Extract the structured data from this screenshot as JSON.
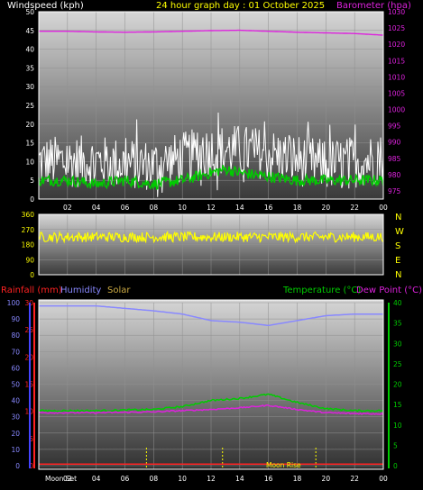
{
  "header": {
    "windspeed_label": "Windspeed (kph)",
    "title": "24 hour graph day : 01 October 2025",
    "barometer_label": "Barometer (hpa)"
  },
  "footer_labels": {
    "rainfall": "Rainfall (mm)",
    "humidity": "Humidity",
    "solar": "Solar",
    "temperature": "Temperature (°C)",
    "dewpoint": "Dew Point (°C)",
    "moonset": "Moon Set",
    "moonrise": "Moon Rise"
  },
  "compass": [
    "N",
    "W",
    "S",
    "E",
    "N"
  ],
  "colors": {
    "windspeed": "#ffffff",
    "gust_avg": "#00cc00",
    "barometer": "#dd22dd",
    "direction": "#ffff00",
    "rainfall": "#ff2222",
    "humidity": "#8888ff",
    "solar": "#ccaa44",
    "temperature": "#00cc00",
    "dewpoint": "#dd22dd"
  },
  "chart_data": [
    {
      "type": "line",
      "name": "wind-barometer",
      "x_ticks": [
        "02",
        "04",
        "06",
        "08",
        "10",
        "12",
        "14",
        "16",
        "18",
        "20",
        "22",
        "00"
      ],
      "y_left_ticks": [
        "50",
        "45",
        "40",
        "35",
        "30",
        "25",
        "20",
        "15",
        "10",
        "5",
        "0"
      ],
      "y_left_range": [
        0,
        50
      ],
      "y_right_ticks": [
        "1030",
        "1025",
        "1020",
        "1015",
        "1010",
        "1005",
        "1000",
        "995",
        "990",
        "985",
        "980",
        "975"
      ],
      "y_right_range": [
        972.5,
        1030
      ],
      "series": [
        {
          "key": "windspeed",
          "profile_x": [
            0,
            4,
            8,
            12,
            14,
            16,
            20,
            24
          ],
          "profile_y": [
            10,
            10,
            9,
            13,
            13,
            12,
            9,
            11
          ],
          "spread": 7
        },
        {
          "key": "gust_avg",
          "profile_x": [
            0,
            2,
            4,
            6,
            8,
            10,
            12,
            13,
            14,
            16,
            18,
            20,
            22,
            24
          ],
          "profile_y": [
            5,
            5,
            4,
            5,
            4,
            5,
            7,
            8,
            7,
            6,
            5,
            5,
            5,
            5
          ],
          "spread": 1.5
        },
        {
          "key": "barometer",
          "profile_x": [
            0,
            2,
            4,
            6,
            8,
            10,
            12,
            14,
            16,
            18,
            20,
            22,
            24
          ],
          "profile_y": [
            1024,
            1024,
            1023.8,
            1023.7,
            1023.8,
            1024,
            1024.2,
            1024.3,
            1024,
            1023.7,
            1023.5,
            1023.3,
            1022.8
          ],
          "spread": 0
        }
      ]
    },
    {
      "type": "line",
      "name": "wind-direction",
      "y_ticks": [
        "360",
        "270",
        "180",
        "90",
        "0"
      ],
      "y_range": [
        0,
        360
      ],
      "series": [
        {
          "key": "direction",
          "profile_x": [
            0,
            24
          ],
          "profile_y": [
            225,
            225
          ],
          "spread": 30
        }
      ]
    },
    {
      "type": "line",
      "name": "temp-humidity",
      "x_ticks": [
        "02",
        "04",
        "06",
        "08",
        "10",
        "12",
        "14",
        "16",
        "18",
        "20",
        "22",
        "00"
      ],
      "y_left_ticks": [
        "100",
        "90",
        "80",
        "70",
        "60",
        "50",
        "40",
        "30",
        "20",
        "10",
        "0"
      ],
      "y_left_range": [
        0,
        100
      ],
      "y_rain_ticks": [
        "30",
        "25",
        "20",
        "15",
        "10",
        "5",
        "0"
      ],
      "y_rain_range": [
        0,
        30
      ],
      "y_right_ticks": [
        "40",
        "35",
        "30",
        "25",
        "20",
        "15",
        "10",
        "5",
        "0"
      ],
      "y_right_range": [
        0,
        40
      ],
      "moonset_hour": 7.5,
      "moonrise_hour": 19.3,
      "series": [
        {
          "key": "humidity",
          "axis": "left",
          "profile_x": [
            0,
            4,
            8,
            10,
            12,
            14,
            16,
            18,
            20,
            22,
            24
          ],
          "profile_y": [
            98,
            98,
            95,
            93,
            89,
            88,
            86,
            89,
            92,
            93,
            93
          ],
          "spread": 0
        },
        {
          "key": "temperature",
          "axis": "right",
          "profile_x": [
            0,
            4,
            8,
            10,
            12,
            14,
            16,
            18,
            20,
            22,
            24
          ],
          "profile_y": [
            13.5,
            13.5,
            13.8,
            14.5,
            16,
            16.5,
            17.5,
            15.5,
            14,
            13.5,
            13.5
          ],
          "spread": 0.2
        },
        {
          "key": "dewpoint",
          "axis": "right",
          "profile_x": [
            0,
            4,
            8,
            10,
            12,
            14,
            16,
            18,
            20,
            22,
            24
          ],
          "profile_y": [
            13,
            13,
            13.2,
            13.5,
            13.8,
            14.2,
            14.8,
            13.8,
            13,
            12.8,
            12.7
          ],
          "spread": 0.15
        },
        {
          "key": "rainfall",
          "axis": "rain",
          "profile_x": [
            0,
            24
          ],
          "profile_y": [
            0.3,
            0.3
          ],
          "spread": 0
        }
      ]
    }
  ]
}
